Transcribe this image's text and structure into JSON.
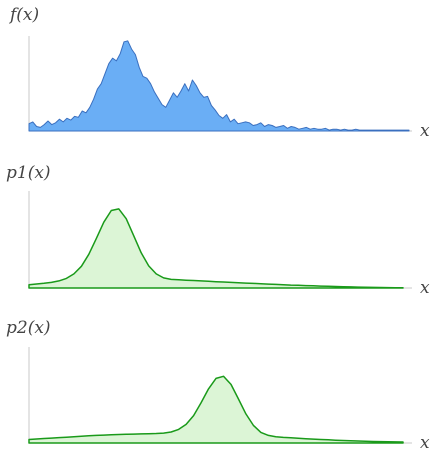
{
  "chart_data": [
    {
      "type": "area",
      "ylabel": "f(x)",
      "xlabel": "x",
      "fill": "#6aaef5",
      "stroke": "#3a6fbf",
      "xlim": [
        0,
        100
      ],
      "ylim": [
        0,
        1
      ],
      "x": [
        0,
        1,
        2,
        3,
        4,
        5,
        6,
        7,
        8,
        9,
        10,
        11,
        12,
        13,
        14,
        15,
        16,
        17,
        18,
        19,
        20,
        21,
        22,
        23,
        24,
        25,
        26,
        27,
        28,
        29,
        30,
        31,
        32,
        33,
        34,
        35,
        36,
        37,
        38,
        39,
        40,
        41,
        42,
        43,
        44,
        45,
        46,
        47,
        48,
        49,
        50,
        51,
        52,
        53,
        54,
        55,
        56,
        57,
        58,
        59,
        60,
        61,
        62,
        63,
        64,
        65,
        66,
        67,
        68,
        69,
        70,
        71,
        72,
        73,
        74,
        75,
        76,
        77,
        78,
        79,
        80,
        81,
        82,
        83,
        84,
        85,
        86,
        87,
        88,
        89,
        90,
        91,
        92,
        93,
        94,
        95,
        96,
        97,
        98,
        99,
        100
      ],
      "y": [
        0.08,
        0.1,
        0.05,
        0.04,
        0.07,
        0.11,
        0.07,
        0.09,
        0.13,
        0.1,
        0.14,
        0.12,
        0.16,
        0.15,
        0.22,
        0.2,
        0.26,
        0.35,
        0.46,
        0.52,
        0.63,
        0.74,
        0.8,
        0.77,
        0.85,
        0.98,
        0.99,
        0.9,
        0.84,
        0.7,
        0.6,
        0.58,
        0.52,
        0.43,
        0.36,
        0.29,
        0.26,
        0.34,
        0.42,
        0.37,
        0.44,
        0.52,
        0.44,
        0.56,
        0.5,
        0.42,
        0.37,
        0.38,
        0.28,
        0.23,
        0.17,
        0.14,
        0.18,
        0.1,
        0.13,
        0.08,
        0.09,
        0.1,
        0.09,
        0.06,
        0.07,
        0.09,
        0.05,
        0.07,
        0.06,
        0.04,
        0.05,
        0.06,
        0.03,
        0.05,
        0.04,
        0.02,
        0.03,
        0.04,
        0.02,
        0.03,
        0.02,
        0.02,
        0.03,
        0.01,
        0.02,
        0.02,
        0.01,
        0.02,
        0.01,
        0.01,
        0.02,
        0.01,
        0.01,
        0.01,
        0.01,
        0.01,
        0.01,
        0.01,
        0.01,
        0.01,
        0.01,
        0.01,
        0.01,
        0.01,
        0.01
      ]
    },
    {
      "type": "area",
      "ylabel": "p1(x)",
      "xlabel": "x",
      "fill": "#dcf5d6",
      "stroke": "#1a9a1a",
      "xlim": [
        0,
        100
      ],
      "ylim": [
        0,
        1
      ],
      "x": [
        0,
        2,
        4,
        6,
        8,
        10,
        12,
        14,
        16,
        18,
        20,
        22,
        24,
        26,
        28,
        30,
        32,
        34,
        36,
        38,
        40,
        42,
        44,
        46,
        48,
        50,
        52,
        54,
        56,
        58,
        60,
        62,
        64,
        66,
        68,
        70,
        72,
        74,
        76,
        78,
        80,
        82,
        84,
        86,
        88,
        90,
        92,
        94,
        96,
        98,
        100
      ],
      "y": [
        0.036,
        0.043,
        0.051,
        0.061,
        0.077,
        0.104,
        0.153,
        0.236,
        0.366,
        0.537,
        0.715,
        0.842,
        0.86,
        0.753,
        0.569,
        0.383,
        0.24,
        0.153,
        0.11,
        0.094,
        0.089,
        0.085,
        0.081,
        0.077,
        0.073,
        0.069,
        0.065,
        0.061,
        0.057,
        0.053,
        0.05,
        0.046,
        0.042,
        0.039,
        0.036,
        0.032,
        0.029,
        0.026,
        0.024,
        0.021,
        0.018,
        0.016,
        0.014,
        0.012,
        0.01,
        0.008,
        0.007,
        0.005,
        0.004,
        0.003,
        0.003
      ]
    },
    {
      "type": "area",
      "ylabel": "p2(x)",
      "xlabel": "x",
      "fill": "#dcf5d6",
      "stroke": "#1a9a1a",
      "xlim": [
        0,
        100
      ],
      "ylim": [
        0,
        1
      ],
      "x": [
        0,
        2,
        4,
        6,
        8,
        10,
        12,
        14,
        16,
        18,
        20,
        22,
        24,
        26,
        28,
        30,
        32,
        34,
        36,
        38,
        40,
        42,
        44,
        46,
        48,
        50,
        52,
        54,
        56,
        58,
        60,
        62,
        64,
        66,
        68,
        70,
        72,
        74,
        76,
        78,
        80,
        82,
        84,
        86,
        88,
        90,
        92,
        94,
        96,
        98,
        100
      ],
      "y": [
        0.039,
        0.044,
        0.049,
        0.054,
        0.059,
        0.064,
        0.069,
        0.074,
        0.079,
        0.083,
        0.087,
        0.09,
        0.093,
        0.096,
        0.098,
        0.1,
        0.102,
        0.104,
        0.109,
        0.121,
        0.149,
        0.204,
        0.301,
        0.441,
        0.594,
        0.71,
        0.733,
        0.644,
        0.485,
        0.32,
        0.193,
        0.117,
        0.083,
        0.069,
        0.062,
        0.057,
        0.052,
        0.047,
        0.043,
        0.039,
        0.035,
        0.031,
        0.028,
        0.025,
        0.022,
        0.019,
        0.017,
        0.015,
        0.013,
        0.012,
        0.011
      ]
    }
  ]
}
